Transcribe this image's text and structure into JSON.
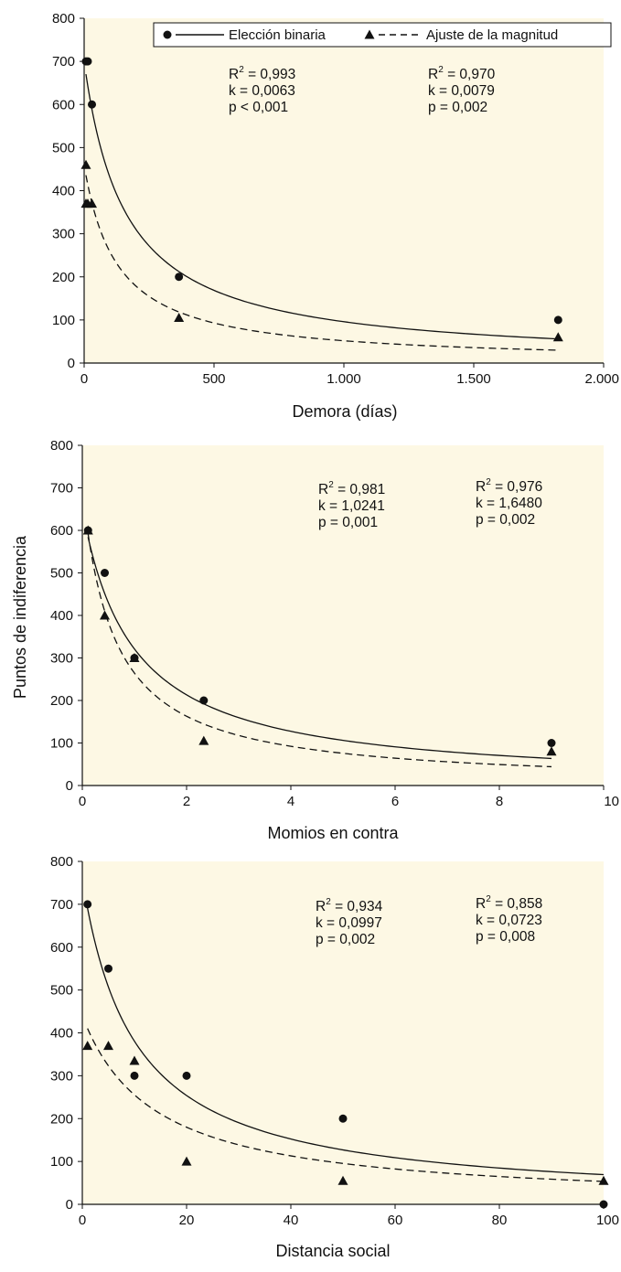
{
  "colors": {
    "plot_background": "#fdf8e4",
    "page_background": "#ffffff",
    "ink": "#111111"
  },
  "legend": {
    "binary_label": "Elección binaria",
    "magnitude_label": "Ajuste de la magnitud"
  },
  "shared_ylabel": "Puntos de indiferencia",
  "chart_data": [
    {
      "type": "scatter",
      "xlabel": "Demora (días)",
      "ylabel": "Puntos de indiferencia",
      "xlim": [
        0,
        2000
      ],
      "ylim": [
        0,
        800
      ],
      "xticks": [
        0,
        500,
        1000,
        1500,
        2000
      ],
      "xtick_labels": [
        "0",
        "500",
        "1.000",
        "1.500",
        "2.000"
      ],
      "yticks": [
        0,
        100,
        200,
        300,
        400,
        500,
        600,
        700,
        800
      ],
      "series": [
        {
          "name": "Elección binaria",
          "marker": "circle",
          "line": "solid",
          "points": [
            [
              7,
              700
            ],
            [
              14,
              700
            ],
            [
              30,
              600
            ],
            [
              365,
              200
            ],
            [
              1825,
              100
            ]
          ],
          "fit": {
            "model": "hyperbolic",
            "A": 700,
            "k": 0.0063
          },
          "stats": [
            "R2 = 0,993",
            "k = 0,0063",
            "p < 0,001"
          ]
        },
        {
          "name": "Ajuste de la magnitud",
          "marker": "triangle",
          "line": "dashed",
          "points": [
            [
              7,
              460
            ],
            [
              7,
              370
            ],
            [
              14,
              370
            ],
            [
              30,
              370
            ],
            [
              365,
              105
            ],
            [
              1825,
              60
            ]
          ],
          "fit": {
            "model": "hyperbolic",
            "A": 460,
            "k": 0.0079
          },
          "stats": [
            "R2 = 0,970",
            "k = 0,0079",
            "p = 0,002"
          ]
        }
      ]
    },
    {
      "type": "scatter",
      "xlabel": "Momios en contra",
      "ylabel": "Puntos de indiferencia",
      "xlim": [
        0,
        10
      ],
      "ylim": [
        0,
        800
      ],
      "xticks": [
        0,
        2,
        4,
        6,
        8,
        10
      ],
      "xtick_labels": [
        "0",
        "2",
        "4",
        "6",
        "8",
        "10"
      ],
      "yticks": [
        0,
        100,
        200,
        300,
        400,
        500,
        600,
        700,
        800
      ],
      "series": [
        {
          "name": "Elección binaria",
          "marker": "circle",
          "line": "solid",
          "points": [
            [
              0.11,
              600
            ],
            [
              0.43,
              500
            ],
            [
              1.0,
              300
            ],
            [
              2.33,
              200
            ],
            [
              9.0,
              100
            ]
          ],
          "fit": {
            "model": "hyperbolic",
            "A": 650,
            "k": 1.0241
          },
          "stats": [
            "R2 = 0,981",
            "k = 1,0241",
            "p = 0,001"
          ]
        },
        {
          "name": "Ajuste de la magnitud",
          "marker": "triangle",
          "line": "dashed",
          "points": [
            [
              0.11,
              600
            ],
            [
              0.43,
              400
            ],
            [
              1.0,
              300
            ],
            [
              2.33,
              105
            ],
            [
              9.0,
              80
            ]
          ],
          "fit": {
            "model": "hyperbolic",
            "A": 700,
            "k": 1.648
          },
          "stats": [
            "R2 = 0,976",
            "k = 1,6480",
            "p = 0,002"
          ]
        }
      ]
    },
    {
      "type": "scatter",
      "xlabel": "Distancia social",
      "ylabel": "Puntos de indiferencia",
      "xlim": [
        0,
        100
      ],
      "ylim": [
        0,
        800
      ],
      "xticks": [
        0,
        20,
        40,
        60,
        80,
        100
      ],
      "xtick_labels": [
        "0",
        "20",
        "40",
        "60",
        "80",
        "100"
      ],
      "yticks": [
        0,
        100,
        200,
        300,
        400,
        500,
        600,
        700,
        800
      ],
      "series": [
        {
          "name": "Elección binaria",
          "marker": "circle",
          "line": "solid",
          "points": [
            [
              1,
              700
            ],
            [
              5,
              550
            ],
            [
              10,
              300
            ],
            [
              20,
              300
            ],
            [
              50,
              200
            ],
            [
              100,
              0
            ]
          ],
          "fit": {
            "model": "hyperbolic",
            "A": 760,
            "k": 0.0997
          },
          "stats": [
            "R2 = 0,934",
            "k = 0,0997",
            "p = 0,002"
          ]
        },
        {
          "name": "Ajuste de la magnitud",
          "marker": "triangle",
          "line": "dashed",
          "points": [
            [
              1,
              370
            ],
            [
              5,
              370
            ],
            [
              10,
              335
            ],
            [
              20,
              100
            ],
            [
              50,
              55
            ],
            [
              100,
              55
            ]
          ],
          "fit": {
            "model": "hyperbolic",
            "A": 440,
            "k": 0.0723
          },
          "stats": [
            "R2 = 0,858",
            "k = 0,0723",
            "p = 0,008"
          ]
        }
      ]
    }
  ]
}
